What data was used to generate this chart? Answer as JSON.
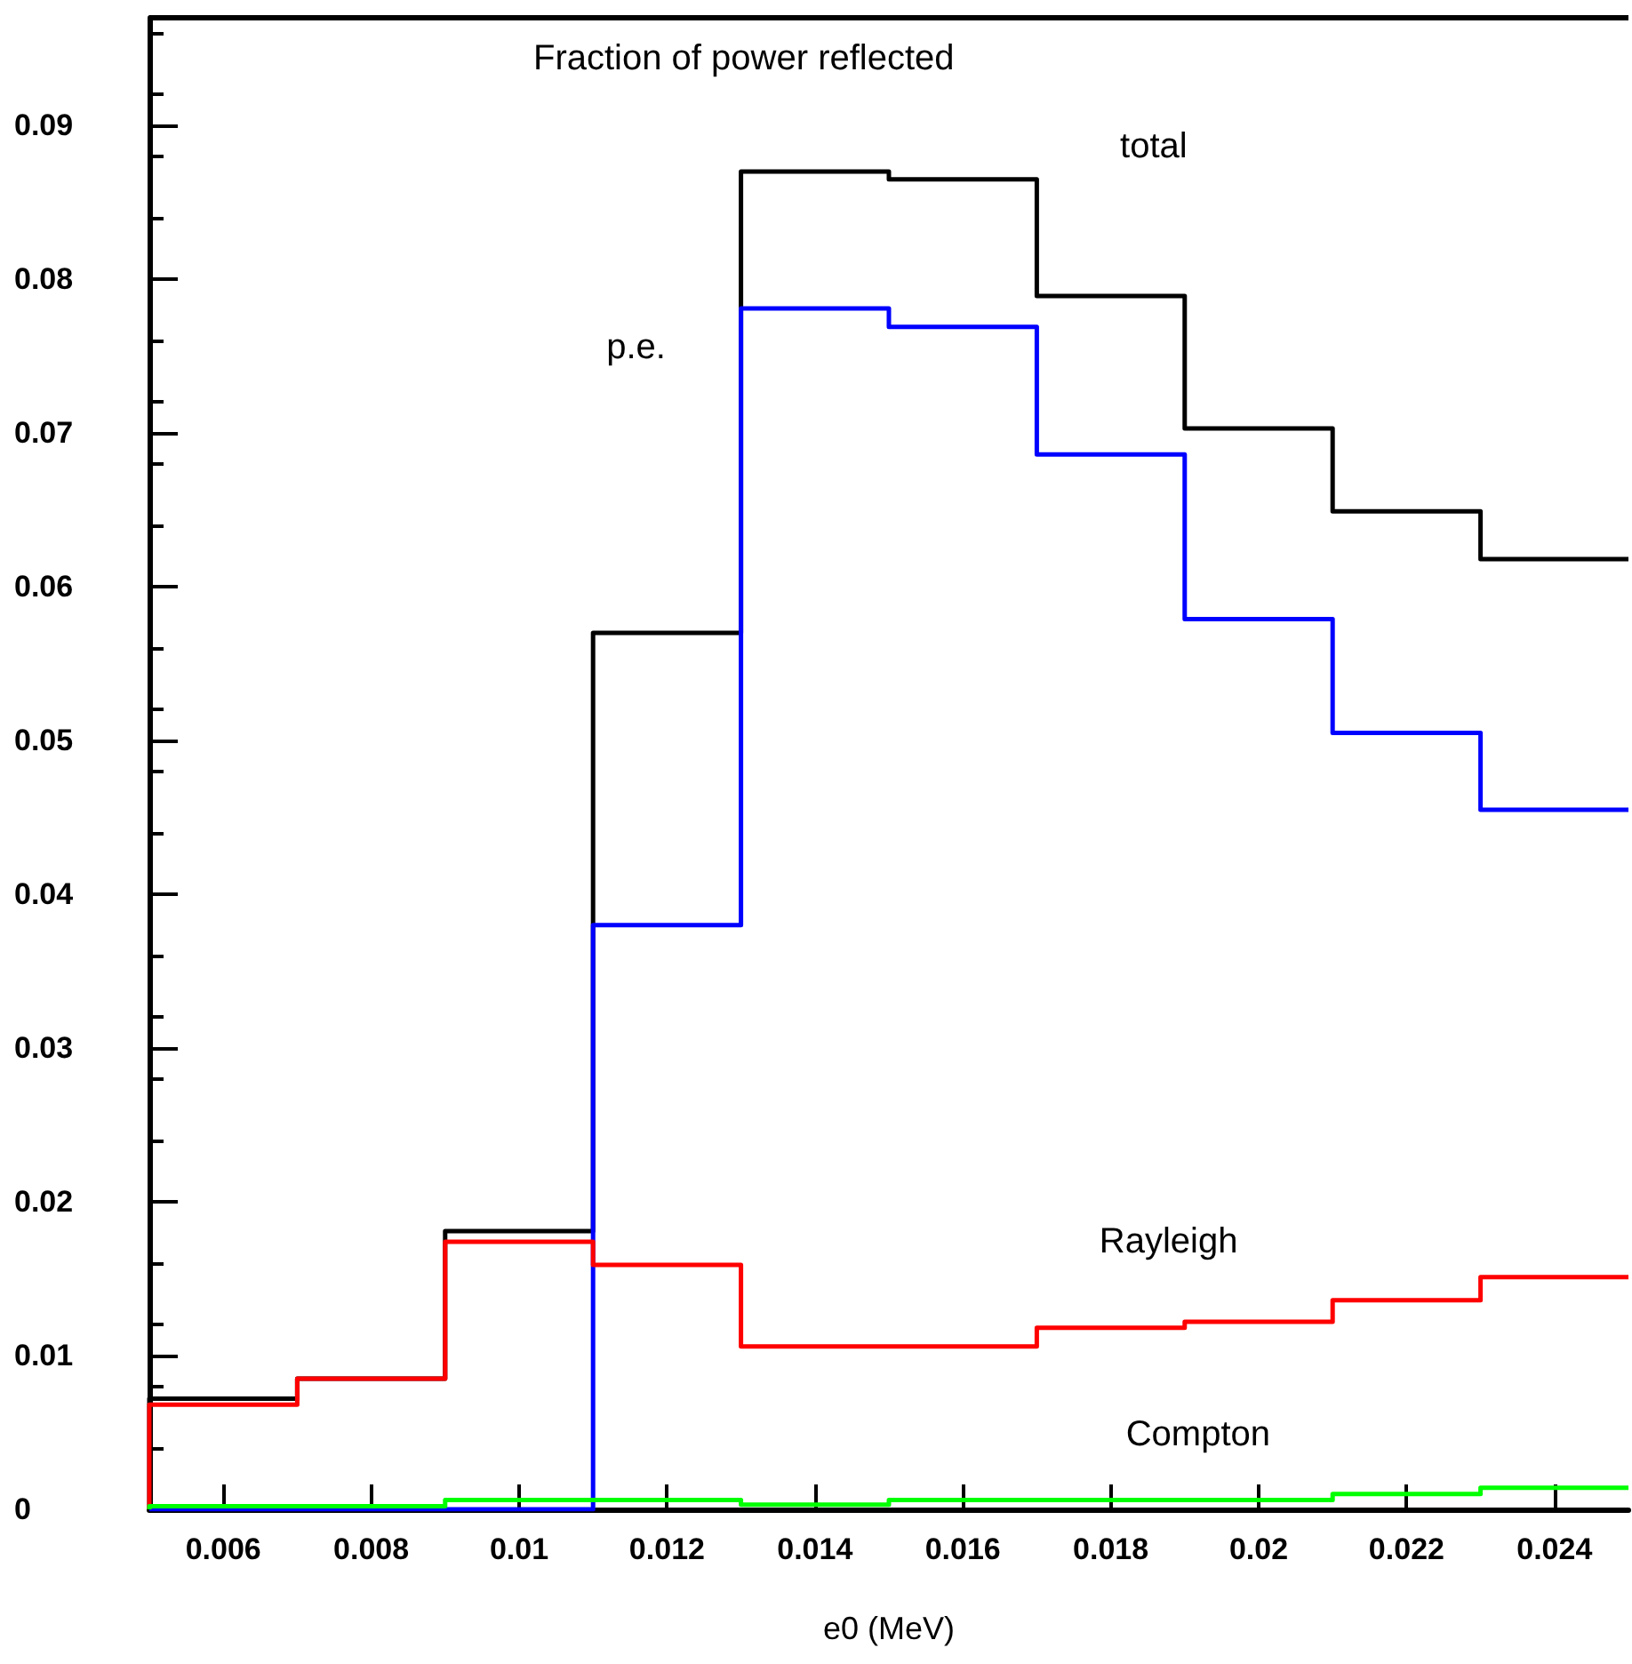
{
  "chart_data": {
    "type": "histogram",
    "title": "Fraction of power reflected",
    "xlabel": "e0 (MeV)",
    "bins": [
      0.005,
      0.007,
      0.009,
      0.011,
      0.013,
      0.015,
      0.017,
      0.019,
      0.021,
      0.023,
      0.025
    ],
    "series": [
      {
        "name": "total",
        "color": "#000000",
        "values": [
          0.0072,
          0.0085,
          0.0181,
          0.057,
          0.087,
          0.0865,
          0.0789,
          0.0703,
          0.0649,
          0.0618
        ]
      },
      {
        "name": "p.e.",
        "color": "#0000ff",
        "values": [
          0,
          0,
          0,
          0.038,
          0.0781,
          0.0769,
          0.0686,
          0.0579,
          0.0505,
          0.0455
        ]
      },
      {
        "name": "Rayleigh",
        "color": "#ff0000",
        "values": [
          0.0068,
          0.0085,
          0.0174,
          0.0159,
          0.0106,
          0.0106,
          0.0118,
          0.0122,
          0.0136,
          0.0151
        ]
      },
      {
        "name": "Compton",
        "color": "#00ff00",
        "values": [
          0.0002,
          0.0002,
          0.0006,
          0.0006,
          0.0003,
          0.0006,
          0.0006,
          0.0006,
          0.001,
          0.0014
        ]
      }
    ],
    "xlim": [
      0.005,
      0.025
    ],
    "xticks": [
      0.006,
      0.008,
      0.01,
      0.012,
      0.014,
      0.016,
      0.018,
      0.02,
      0.022,
      0.024
    ],
    "ylim": [
      0,
      0.097
    ],
    "yticks": [
      0,
      0.01,
      0.02,
      0.03,
      0.04,
      0.05,
      0.06,
      0.07,
      0.08,
      0.09
    ],
    "grid": false,
    "legend": false
  }
}
